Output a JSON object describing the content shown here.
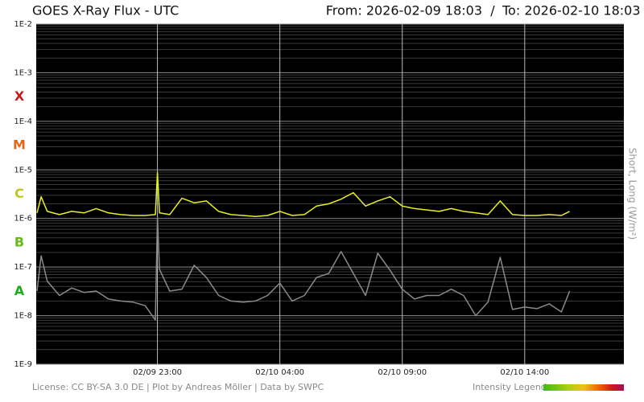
{
  "chart_data": {
    "type": "line",
    "title": "GOES X-Ray Flux - UTC",
    "from_label": "From: 2026-02-09 18:03",
    "separator": "/",
    "to_label": "To: 2026-02-10 18:03",
    "y_label": "Short, Long (W/m²)",
    "ylog": true,
    "grid": true,
    "minor_grid": true,
    "ylim": [
      1e-09,
      0.01
    ],
    "yticks": [
      {
        "value": 1e-09,
        "label": "1E-9"
      },
      {
        "value": 1e-08,
        "label": "1E-8"
      },
      {
        "value": 1e-07,
        "label": "1E-7"
      },
      {
        "value": 1e-06,
        "label": "1E-6"
      },
      {
        "value": 1e-05,
        "label": "1E-5"
      },
      {
        "value": 0.0001,
        "label": "1E-4"
      },
      {
        "value": 0.001,
        "label": "1E-3"
      },
      {
        "value": 0.01,
        "label": "1E-2"
      }
    ],
    "xlim": [
      "2026-02-09T18:03",
      "2026-02-10T18:03"
    ],
    "xticks": [
      {
        "value": "2026-02-09T23:00",
        "label": "02/09 23:00"
      },
      {
        "value": "2026-02-10T04:00",
        "label": "02/10 04:00"
      },
      {
        "value": "2026-02-10T09:00",
        "label": "02/10 09:00"
      },
      {
        "value": "2026-02-10T14:00",
        "label": "02/10 14:00"
      }
    ],
    "flare_classes": [
      {
        "label": "A",
        "color": "#22a822"
      },
      {
        "label": "B",
        "color": "#66b81c"
      },
      {
        "label": "C",
        "color": "#bcc818"
      },
      {
        "label": "M",
        "color": "#e0681a"
      },
      {
        "label": "X",
        "color": "#cc1a1a"
      }
    ],
    "x": [
      "2026-02-09T18:05",
      "2026-02-09T18:15",
      "2026-02-09T18:30",
      "2026-02-09T19:00",
      "2026-02-09T19:30",
      "2026-02-09T20:00",
      "2026-02-09T20:30",
      "2026-02-09T21:00",
      "2026-02-09T21:30",
      "2026-02-09T22:00",
      "2026-02-09T22:30",
      "2026-02-09T22:55",
      "2026-02-09T23:00",
      "2026-02-09T23:05",
      "2026-02-09T23:30",
      "2026-02-10T00:00",
      "2026-02-10T00:30",
      "2026-02-10T01:00",
      "2026-02-10T01:30",
      "2026-02-10T02:00",
      "2026-02-10T02:30",
      "2026-02-10T03:00",
      "2026-02-10T03:30",
      "2026-02-10T04:00",
      "2026-02-10T04:30",
      "2026-02-10T05:00",
      "2026-02-10T05:30",
      "2026-02-10T06:00",
      "2026-02-10T06:30",
      "2026-02-10T07:00",
      "2026-02-10T07:30",
      "2026-02-10T08:00",
      "2026-02-10T08:30",
      "2026-02-10T09:00",
      "2026-02-10T09:30",
      "2026-02-10T10:00",
      "2026-02-10T10:30",
      "2026-02-10T11:00",
      "2026-02-10T11:30",
      "2026-02-10T12:00",
      "2026-02-10T12:30",
      "2026-02-10T13:00",
      "2026-02-10T13:30",
      "2026-02-10T14:00",
      "2026-02-10T14:30",
      "2026-02-10T15:00",
      "2026-02-10T15:30",
      "2026-02-10T15:50"
    ],
    "series": [
      {
        "color": "#e8f020",
        "values": [
          1.3e-06,
          2.8e-06,
          1.4e-06,
          1.2e-06,
          1.4e-06,
          1.3e-06,
          1.6e-06,
          1.3e-06,
          1.2e-06,
          1.15e-06,
          1.15e-06,
          1.2e-06,
          8.7e-06,
          1.3e-06,
          1.2e-06,
          2.6e-06,
          2.1e-06,
          2.3e-06,
          1.4e-06,
          1.2e-06,
          1.15e-06,
          1.1e-06,
          1.15e-06,
          1.4e-06,
          1.15e-06,
          1.2e-06,
          1.8e-06,
          2e-06,
          2.5e-06,
          3.4e-06,
          1.8e-06,
          2.3e-06,
          2.8e-06,
          1.8e-06,
          1.6e-06,
          1.5e-06,
          1.4e-06,
          1.6e-06,
          1.4e-06,
          1.3e-06,
          1.2e-06,
          2.3e-06,
          1.2e-06,
          1.15e-06,
          1.15e-06,
          1.2e-06,
          1.15e-06,
          1.4e-06
        ]
      },
      {
        "color": "#8a8a8a",
        "values": [
          3.2e-08,
          1.7e-07,
          5.1e-08,
          2.6e-08,
          3.7e-08,
          3e-08,
          3.2e-08,
          2.2e-08,
          2e-08,
          1.9e-08,
          1.6e-08,
          8.1e-09,
          1.07e-06,
          9e-08,
          3.2e-08,
          3.5e-08,
          1.09e-07,
          6.1e-08,
          2.6e-08,
          2e-08,
          1.9e-08,
          2e-08,
          2.6e-08,
          4.7e-08,
          2e-08,
          2.6e-08,
          6.1e-08,
          7.4e-08,
          2.08e-07,
          7.4e-08,
          2.6e-08,
          1.92e-07,
          8.6e-08,
          3.5e-08,
          2.2e-08,
          2.6e-08,
          2.6e-08,
          3.5e-08,
          2.6e-08,
          1e-08,
          1.9e-08,
          1.59e-07,
          1.34e-08,
          1.5e-08,
          1.39e-08,
          1.75e-08,
          1.19e-08,
          3.2e-08
        ]
      }
    ]
  },
  "footer": {
    "license": "License: CC BY-SA 3.0 DE | Plot by Andreas Möller | Data by SWPC",
    "legend_label": "Intensity Legend"
  }
}
